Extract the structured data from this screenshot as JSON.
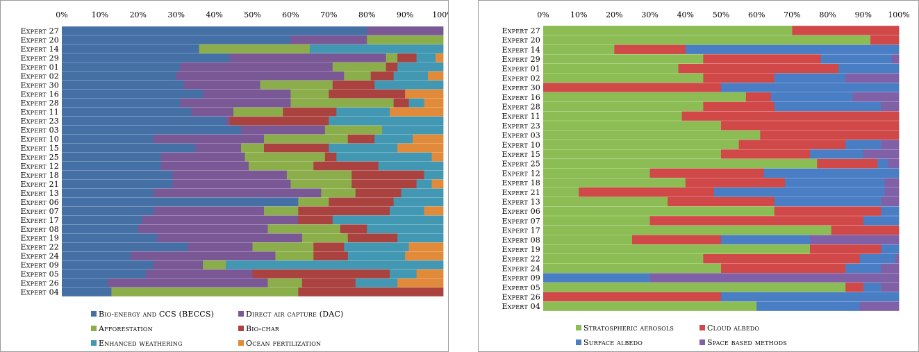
{
  "charts": [
    {
      "type": "bar",
      "orientation": "horizontal",
      "stacked": "percent",
      "xlim": [
        0,
        100
      ],
      "xticks": [
        "0%",
        "10%",
        "20%",
        "30%",
        "40%",
        "50%",
        "60%",
        "70%",
        "80%",
        "90%",
        "100%"
      ],
      "categories": [
        "Expert 27",
        "Expert 20",
        "Expert 14",
        "Expert 29",
        "Expert 01",
        "Expert 02",
        "Expert 30",
        "Expert 16",
        "Expert 28",
        "Expert 11",
        "Expert 23",
        "Expert 03",
        "Expert 10",
        "Expert 15",
        "Expert 25",
        "Expert 12",
        "Expert 18",
        "Expert 21",
        "Expert 13",
        "Expert 06",
        "Expert 07",
        "Expert 17",
        "Expert 08",
        "Expert 19",
        "Expert 22",
        "Expert 24",
        "Expert 09",
        "Expert 05",
        "Expert 26",
        "Expert 04"
      ],
      "series": [
        {
          "name": "Bio-energy and CCS (BECCS)",
          "color": "#4470a6",
          "values": [
            80,
            60,
            36,
            44,
            31,
            30,
            32,
            37,
            31,
            34,
            43,
            47,
            24,
            35,
            26,
            26,
            29,
            29,
            24,
            62,
            24,
            21,
            20,
            25,
            33,
            18,
            24,
            22,
            12,
            13
          ]
        },
        {
          "name": "Direct air capture (DAC)",
          "color": "#7a5896",
          "values": [
            20,
            20,
            0,
            41,
            40,
            44,
            20,
            23,
            29,
            11,
            1,
            22,
            29,
            12,
            22,
            23,
            30,
            31,
            44,
            0,
            29,
            41,
            34,
            38,
            17,
            38,
            13,
            28,
            42,
            0
          ]
        },
        {
          "name": "Afforestation",
          "color": "#8cae4a",
          "values": [
            0,
            20,
            29,
            3,
            14,
            7,
            19,
            10,
            27,
            13,
            0,
            15,
            22,
            6,
            21,
            17,
            17,
            16,
            9,
            8,
            9,
            0,
            19,
            12,
            16,
            10,
            6,
            0,
            9,
            49
          ]
        },
        {
          "name": "Bio-char",
          "color": "#aa4240",
          "values": [
            0,
            0,
            0,
            5,
            3,
            6,
            11,
            20,
            4,
            14,
            26,
            0,
            7,
            17,
            3,
            17,
            19,
            17,
            12,
            17,
            24,
            9,
            7,
            13,
            8,
            9,
            0,
            36,
            14,
            38
          ]
        },
        {
          "name": "Enhanced weathering",
          "color": "#4298b2",
          "values": [
            0,
            0,
            35,
            5,
            12,
            9,
            18,
            0,
            4,
            14,
            30,
            16,
            10,
            18,
            25,
            17,
            5,
            4,
            11,
            13,
            9,
            29,
            20,
            12,
            17,
            15,
            57,
            7,
            11,
            0
          ]
        },
        {
          "name": "Ocean fertilization",
          "color": "#e08a3a",
          "values": [
            0,
            0,
            0,
            2,
            0,
            4,
            0,
            10,
            5,
            14,
            0,
            0,
            8,
            12,
            3,
            0,
            0,
            3,
            0,
            0,
            5,
            0,
            0,
            0,
            9,
            10,
            0,
            7,
            12,
            0
          ]
        }
      ]
    },
    {
      "type": "bar",
      "orientation": "horizontal",
      "stacked": "percent",
      "xlim": [
        0,
        100
      ],
      "xticks": [
        "0%",
        "10%",
        "20%",
        "30%",
        "40%",
        "50%",
        "60%",
        "70%",
        "80%",
        "90%",
        "100%"
      ],
      "categories": [
        "Expert 27",
        "Expert 20",
        "Expert 14",
        "Expert 29",
        "Expert 01",
        "Expert 02",
        "Expert 30",
        "Expert 16",
        "Expert 28",
        "Expert 11",
        "Expert 23",
        "Expert 03",
        "Expert 10",
        "Expert 15",
        "Expert 25",
        "Expert 12",
        "Expert 18",
        "Expert 21",
        "Expert 13",
        "Expert 06",
        "Expert 07",
        "Expert 17",
        "Expert 08",
        "Expert 19",
        "Expert 22",
        "Expert 24",
        "Expert 09",
        "Expert 05",
        "Expert 26",
        "Expert 04"
      ],
      "series": [
        {
          "name": "Stratospheric aerosols",
          "color": "#8cbc54",
          "values": [
            70,
            92,
            20,
            45,
            38,
            45,
            0,
            57,
            45,
            39,
            50,
            61,
            55,
            50,
            77,
            30,
            40,
            10,
            35,
            65,
            30,
            81,
            25,
            75,
            45,
            50,
            0,
            85,
            0,
            60
          ]
        },
        {
          "name": "Cloud albedo",
          "color": "#d04848",
          "values": [
            30,
            8,
            20,
            33,
            45,
            20,
            50,
            7,
            20,
            61,
            50,
            39,
            30,
            25,
            17,
            32,
            28,
            38,
            30,
            30,
            60,
            19,
            25,
            20,
            44,
            35,
            0,
            5,
            50,
            0
          ]
        },
        {
          "name": "Surface albedo",
          "color": "#4a7ec4",
          "values": [
            0,
            0,
            60,
            20,
            17,
            20,
            50,
            23,
            30,
            0,
            0,
            0,
            10,
            15,
            3,
            38,
            28,
            48,
            30,
            5,
            10,
            0,
            25,
            5,
            10,
            10,
            30,
            5,
            50,
            29
          ]
        },
        {
          "name": "Space based methods",
          "color": "#8060a6",
          "values": [
            0,
            0,
            0,
            2,
            0,
            15,
            0,
            13,
            5,
            0,
            0,
            0,
            5,
            10,
            3,
            0,
            4,
            4,
            5,
            0,
            0,
            0,
            25,
            0,
            1,
            5,
            70,
            5,
            0,
            11
          ]
        }
      ]
    }
  ],
  "left_legend": [
    {
      "label": "Bio-energy and CCS (BECCS)",
      "color": "#4470a6"
    },
    {
      "label": "Direct air capture (DAC)",
      "color": "#7a5896"
    },
    {
      "label": "Afforestation",
      "color": "#8cae4a"
    },
    {
      "label": "Bio-char",
      "color": "#aa4240"
    },
    {
      "label": "Enhanced weathering",
      "color": "#4298b2"
    },
    {
      "label": "Ocean fertilization",
      "color": "#e08a3a"
    }
  ],
  "right_legend": [
    {
      "label": "Stratospheric aerosols",
      "color": "#8cbc54"
    },
    {
      "label": "Cloud albedo",
      "color": "#d04848"
    },
    {
      "label": "Surface albedo",
      "color": "#4a7ec4"
    },
    {
      "label": "Space based methods",
      "color": "#8060a6"
    }
  ]
}
